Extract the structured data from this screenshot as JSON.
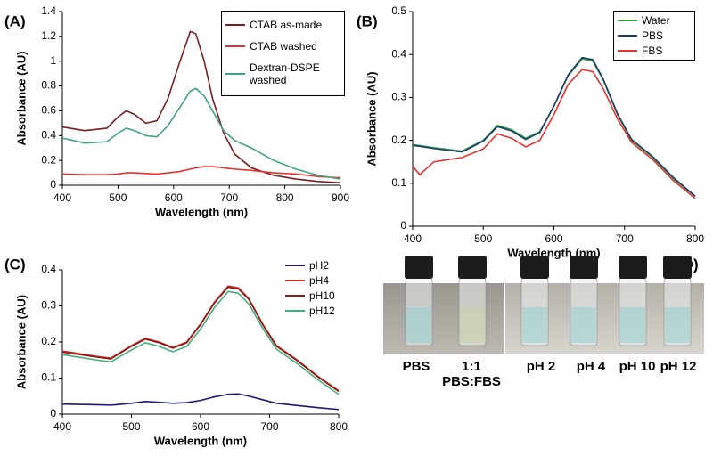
{
  "chart_data": [
    {
      "type": "line",
      "label": "(A)",
      "xlabel": "Wavelength (nm)",
      "ylabel": "Absorbance (AU)",
      "xlim": [
        400,
        900
      ],
      "xticks": [
        400,
        500,
        600,
        700,
        800,
        900
      ],
      "ylim": [
        0,
        1.4
      ],
      "yticks": [
        0,
        0.2,
        0.4,
        0.6,
        0.8,
        1,
        1.2,
        1.4
      ],
      "legend": "top-right",
      "legend_box": true,
      "x": [
        400,
        440,
        480,
        500,
        515,
        530,
        550,
        570,
        590,
        610,
        630,
        640,
        655,
        670,
        690,
        710,
        740,
        780,
        820,
        860,
        900
      ],
      "series": [
        {
          "name": "CTAB as-made",
          "color": "#7a1f1f",
          "values": [
            0.47,
            0.44,
            0.46,
            0.55,
            0.6,
            0.57,
            0.5,
            0.52,
            0.7,
            0.98,
            1.24,
            1.22,
            1.0,
            0.7,
            0.42,
            0.25,
            0.14,
            0.08,
            0.05,
            0.03,
            0.02
          ]
        },
        {
          "name": "CTAB washed",
          "color": "#e8312d",
          "values": [
            0.09,
            0.085,
            0.085,
            0.09,
            0.1,
            0.1,
            0.095,
            0.09,
            0.1,
            0.11,
            0.13,
            0.14,
            0.15,
            0.15,
            0.14,
            0.13,
            0.12,
            0.1,
            0.09,
            0.07,
            0.06
          ]
        },
        {
          "name": "Dextran-DSPE washed",
          "color": "#3fa57f",
          "values": [
            0.38,
            0.34,
            0.35,
            0.42,
            0.46,
            0.44,
            0.4,
            0.39,
            0.48,
            0.62,
            0.76,
            0.78,
            0.72,
            0.6,
            0.44,
            0.36,
            0.3,
            0.2,
            0.13,
            0.08,
            0.05
          ]
        }
      ]
    },
    {
      "type": "line",
      "label": "(B)",
      "xlabel": "Wavelength (nm)",
      "ylabel": "Absorbance (AU)",
      "xlim": [
        400,
        800
      ],
      "xticks": [
        400,
        500,
        600,
        700,
        800
      ],
      "ylim": [
        0,
        0.5
      ],
      "yticks": [
        0,
        0.1,
        0.2,
        0.3,
        0.4,
        0.5
      ],
      "legend": "top-right",
      "legend_box": true,
      "x": [
        400,
        410,
        430,
        470,
        500,
        520,
        540,
        560,
        580,
        600,
        620,
        640,
        655,
        670,
        690,
        710,
        740,
        770,
        800
      ],
      "series": [
        {
          "name": "Water",
          "color": "#2e9e3e",
          "values": [
            0.19,
            0.188,
            0.183,
            0.175,
            0.2,
            0.235,
            0.225,
            0.205,
            0.22,
            0.28,
            0.35,
            0.39,
            0.385,
            0.34,
            0.26,
            0.2,
            0.16,
            0.11,
            0.07
          ]
        },
        {
          "name": "PBS",
          "color": "#1f3a6e",
          "values": [
            0.188,
            0.186,
            0.181,
            0.173,
            0.198,
            0.232,
            0.222,
            0.202,
            0.218,
            0.28,
            0.352,
            0.393,
            0.388,
            0.342,
            0.262,
            0.202,
            0.162,
            0.112,
            0.07
          ]
        },
        {
          "name": "FBS",
          "color": "#e8312d",
          "values": [
            0.14,
            0.12,
            0.15,
            0.16,
            0.18,
            0.215,
            0.205,
            0.185,
            0.2,
            0.26,
            0.33,
            0.365,
            0.36,
            0.32,
            0.25,
            0.195,
            0.155,
            0.105,
            0.065
          ]
        }
      ]
    },
    {
      "type": "line",
      "label": "(C)",
      "xlabel": "Wavelength (nm)",
      "ylabel": "Absorbance (AU)",
      "xlim": [
        400,
        800
      ],
      "xticks": [
        400,
        500,
        600,
        700,
        800
      ],
      "ylim": [
        0,
        0.4
      ],
      "yticks": [
        0,
        0.1,
        0.2,
        0.3,
        0.4
      ],
      "legend": "top-right",
      "legend_box": false,
      "x": [
        400,
        450,
        470,
        500,
        520,
        540,
        560,
        580,
        600,
        620,
        640,
        655,
        670,
        690,
        710,
        740,
        770,
        800
      ],
      "series": [
        {
          "name": "pH2",
          "color": "#1a1a7a",
          "values": [
            0.028,
            0.026,
            0.025,
            0.03,
            0.035,
            0.033,
            0.03,
            0.032,
            0.038,
            0.048,
            0.055,
            0.056,
            0.05,
            0.04,
            0.03,
            0.024,
            0.018,
            0.013
          ]
        },
        {
          "name": "pH4",
          "color": "#e0281e",
          "values": [
            0.175,
            0.16,
            0.155,
            0.19,
            0.21,
            0.2,
            0.185,
            0.2,
            0.25,
            0.31,
            0.355,
            0.35,
            0.32,
            0.25,
            0.19,
            0.15,
            0.105,
            0.065
          ]
        },
        {
          "name": "pH10",
          "color": "#8b1a1a",
          "values": [
            0.172,
            0.158,
            0.153,
            0.188,
            0.208,
            0.198,
            0.183,
            0.198,
            0.248,
            0.308,
            0.352,
            0.347,
            0.318,
            0.248,
            0.188,
            0.148,
            0.103,
            0.063
          ]
        },
        {
          "name": "pH12",
          "color": "#3fae7a",
          "values": [
            0.165,
            0.15,
            0.145,
            0.178,
            0.198,
            0.188,
            0.173,
            0.188,
            0.236,
            0.295,
            0.34,
            0.335,
            0.305,
            0.238,
            0.18,
            0.14,
            0.095,
            0.055
          ]
        }
      ]
    }
  ],
  "photo": {
    "label": "(D)",
    "captions": [
      "PBS",
      "1:1 PBS:FBS",
      "pH 2",
      "pH 4",
      "pH 10",
      "pH 12"
    ]
  }
}
